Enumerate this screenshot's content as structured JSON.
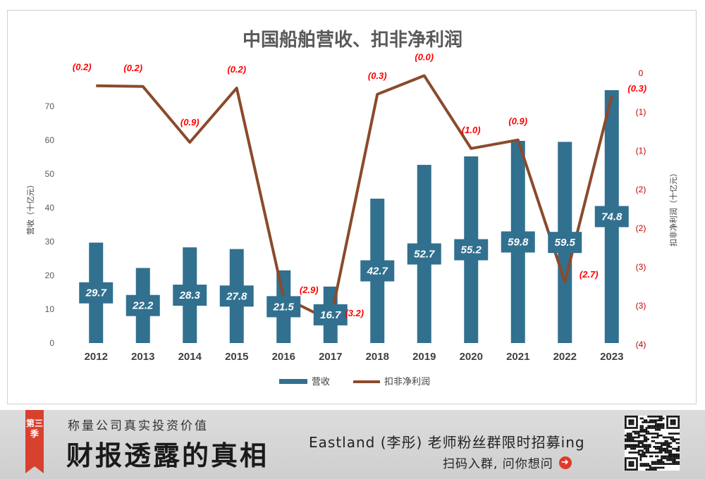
{
  "chart_data": {
    "type": "bar+line",
    "title": "中国船舶营收、扣非净利润",
    "categories": [
      "2012",
      "2013",
      "2014",
      "2015",
      "2016",
      "2017",
      "2018",
      "2019",
      "2020",
      "2021",
      "2022",
      "2023"
    ],
    "series": [
      {
        "name": "营收",
        "type": "bar",
        "axis": "left",
        "color": "#31708f",
        "values": [
          29.7,
          22.2,
          28.3,
          27.8,
          21.5,
          16.7,
          42.7,
          52.7,
          55.2,
          59.8,
          59.5,
          74.8
        ],
        "labels": [
          "29.7",
          "22.2",
          "28.3",
          "27.8",
          "21.5",
          "16.7",
          "42.7",
          "52.7",
          "55.2",
          "59.8",
          "59.5",
          "74.8"
        ]
      },
      {
        "name": "扣非净利润",
        "type": "line",
        "axis": "right",
        "color": "#8b4a2b",
        "values": [
          -0.17,
          -0.18,
          -0.9,
          -0.2,
          -2.9,
          -3.2,
          -0.28,
          -0.04,
          -0.98,
          -0.87,
          -2.7,
          -0.3
        ],
        "labels": [
          "(0.2)",
          "(0.2)",
          "(0.9)",
          "(0.2)",
          "(2.9)",
          "(3.2)",
          "(0.3)",
          "(0.0)",
          "(1.0)",
          "(0.9)",
          "(2.7)",
          "(0.3)"
        ]
      }
    ],
    "y_left": {
      "label": "营收（十亿元）",
      "range": [
        0,
        80
      ],
      "ticks": [
        "0",
        "10",
        "20",
        "30",
        "40",
        "50",
        "60",
        "70"
      ]
    },
    "y_right": {
      "label": "扣非净利润（十亿元）",
      "range": [
        -3.5,
        0.0
      ],
      "ticks": [
        "0",
        "(1)",
        "(1)",
        "(2)",
        "(2)",
        "(3)",
        "(3)",
        "(4)"
      ]
    },
    "legend": {
      "position": "bottom",
      "items": [
        "营收",
        "扣非净利润"
      ]
    },
    "grid": false
  },
  "banner": {
    "season": "第三季",
    "slogan": "称量公司真实投资价值",
    "brand": "财报透露的真相",
    "recruit": "Eastland (李彤) 老师粉丝群限时招募ing",
    "cta": "扫码入群, 问你想问",
    "cta_icon": "arrow-right-circle-icon"
  }
}
